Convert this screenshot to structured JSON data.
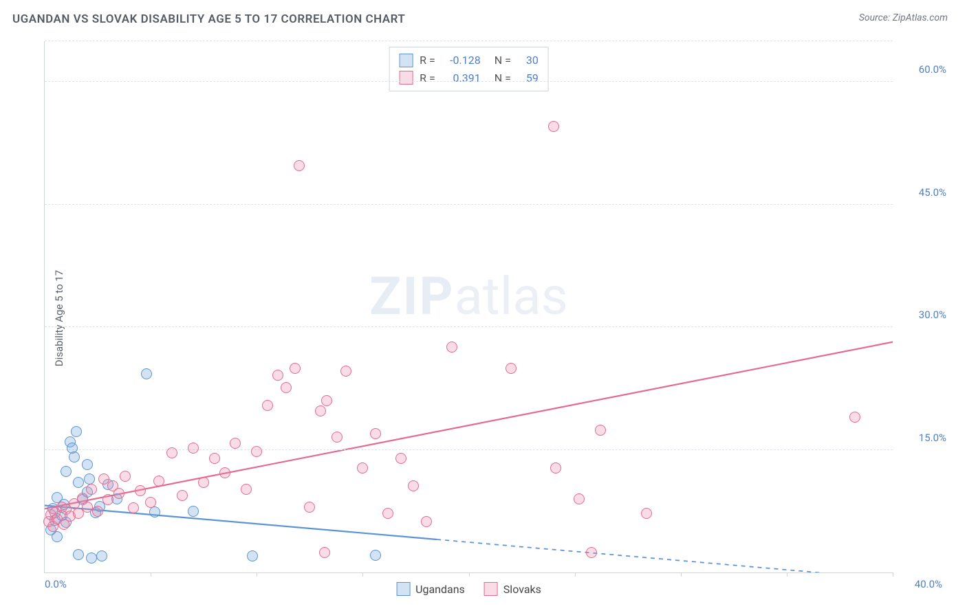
{
  "title": "UGANDAN VS SLOVAK DISABILITY AGE 5 TO 17 CORRELATION CHART",
  "source_label": "Source: ZipAtlas.com",
  "watermark": {
    "bold": "ZIP",
    "rest": "atlas"
  },
  "ylabel": "Disability Age 5 to 17",
  "chart": {
    "type": "scatter",
    "background_color": "#ffffff",
    "grid_color": "#dfe3e9",
    "axis_color": "#cfd4db",
    "xlim": [
      0,
      40
    ],
    "ylim": [
      0,
      65
    ],
    "ytick_step": 15,
    "yticks": [
      15,
      30,
      45,
      60
    ],
    "ytick_labels": [
      "15.0%",
      "30.0%",
      "45.0%",
      "60.0%"
    ],
    "ytick_color": "#4f7fc7",
    "x_origin_label": "0.0%",
    "x_end_label": "40.0%",
    "xtick_positions": [
      5,
      10,
      15,
      20,
      25,
      30,
      35,
      40
    ],
    "marker_radius": 8,
    "marker_border_width": 1.5,
    "marker_fill_opacity": 0.28,
    "trend_line_width": 2.2
  },
  "series": [
    {
      "key": "ugandans",
      "label": "Ugandans",
      "color": "#5a93d6",
      "fill": "rgba(119,168,222,0.32)",
      "R": "-0.128",
      "N": "30",
      "trend": {
        "x1": 0,
        "y1": 8.2,
        "x2": 40,
        "y2": -0.8,
        "solid_to_x": 18.5
      },
      "points": [
        [
          0.3,
          5.2
        ],
        [
          0.4,
          7.8
        ],
        [
          0.5,
          6.4
        ],
        [
          0.6,
          9.2
        ],
        [
          0.8,
          7.0
        ],
        [
          0.9,
          8.3
        ],
        [
          1.0,
          6.1
        ],
        [
          1.2,
          16.0
        ],
        [
          1.3,
          15.2
        ],
        [
          1.4,
          14.1
        ],
        [
          1.5,
          17.2
        ],
        [
          1.0,
          12.4
        ],
        [
          1.6,
          11.0
        ],
        [
          1.8,
          8.9
        ],
        [
          2.0,
          9.8
        ],
        [
          2.1,
          11.4
        ],
        [
          2.4,
          7.3
        ],
        [
          2.6,
          8.1
        ],
        [
          2.0,
          13.2
        ],
        [
          0.6,
          4.4
        ],
        [
          1.6,
          2.2
        ],
        [
          2.2,
          1.8
        ],
        [
          2.7,
          2.0
        ],
        [
          3.4,
          9.0
        ],
        [
          4.8,
          24.3
        ],
        [
          5.2,
          7.4
        ],
        [
          7.0,
          7.5
        ],
        [
          9.8,
          2.0
        ],
        [
          15.6,
          2.1
        ],
        [
          3.0,
          10.8
        ]
      ]
    },
    {
      "key": "slovaks",
      "label": "Slovaks",
      "color": "#e46a8f",
      "fill": "rgba(235,140,170,0.30)",
      "R": "0.391",
      "N": "59",
      "trend": {
        "x1": 0,
        "y1": 7.8,
        "x2": 40,
        "y2": 28.2,
        "solid_to_x": 40
      },
      "points": [
        [
          0.2,
          6.2
        ],
        [
          0.3,
          7.1
        ],
        [
          0.4,
          5.6
        ],
        [
          0.5,
          7.3
        ],
        [
          0.6,
          6.6
        ],
        [
          0.8,
          8.0
        ],
        [
          0.9,
          5.9
        ],
        [
          1.0,
          7.7
        ],
        [
          1.2,
          6.9
        ],
        [
          1.4,
          8.4
        ],
        [
          1.6,
          7.2
        ],
        [
          1.8,
          9.1
        ],
        [
          2.0,
          8.0
        ],
        [
          2.2,
          10.2
        ],
        [
          2.5,
          7.5
        ],
        [
          2.8,
          11.4
        ],
        [
          3.0,
          8.9
        ],
        [
          3.2,
          10.6
        ],
        [
          3.5,
          9.7
        ],
        [
          3.8,
          11.8
        ],
        [
          4.2,
          7.9
        ],
        [
          4.5,
          10.0
        ],
        [
          5.0,
          8.6
        ],
        [
          5.4,
          11.2
        ],
        [
          6.0,
          14.6
        ],
        [
          6.5,
          9.4
        ],
        [
          7.0,
          15.2
        ],
        [
          7.5,
          11.0
        ],
        [
          8.0,
          14.0
        ],
        [
          8.5,
          12.2
        ],
        [
          9.0,
          15.8
        ],
        [
          9.5,
          10.2
        ],
        [
          10.0,
          14.8
        ],
        [
          10.5,
          20.4
        ],
        [
          11.0,
          24.1
        ],
        [
          11.4,
          22.6
        ],
        [
          11.8,
          25.0
        ],
        [
          12.0,
          49.8
        ],
        [
          12.5,
          8.0
        ],
        [
          13.0,
          19.8
        ],
        [
          13.3,
          21.0
        ],
        [
          13.8,
          16.6
        ],
        [
          14.2,
          24.6
        ],
        [
          15.0,
          12.8
        ],
        [
          15.6,
          17.0
        ],
        [
          16.2,
          7.2
        ],
        [
          16.8,
          14.0
        ],
        [
          17.4,
          10.6
        ],
        [
          18.0,
          6.2
        ],
        [
          13.2,
          2.4
        ],
        [
          19.2,
          27.6
        ],
        [
          22.0,
          25.0
        ],
        [
          24.0,
          54.6
        ],
        [
          24.1,
          12.8
        ],
        [
          25.2,
          9.0
        ],
        [
          26.2,
          17.4
        ],
        [
          25.8,
          2.4
        ],
        [
          38.2,
          19.0
        ],
        [
          28.4,
          7.2
        ]
      ]
    }
  ],
  "stats_box": {
    "R_label": "R =",
    "N_label": "N =",
    "value_color": "#4f7fc7"
  },
  "legend_bottom": [
    "Ugandans",
    "Slovaks"
  ]
}
